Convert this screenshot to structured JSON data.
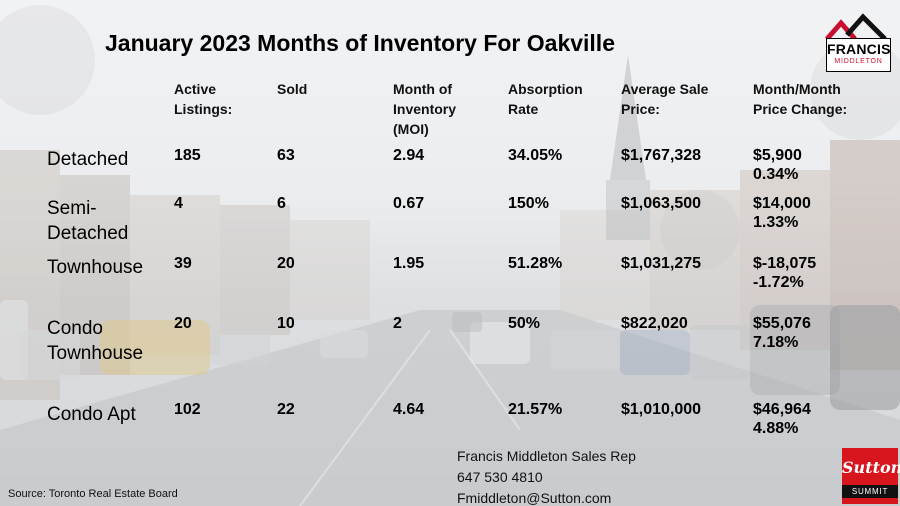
{
  "title": "January 2023 Months of Inventory For Oakville",
  "headers": {
    "active": [
      "Active",
      "Listings:"
    ],
    "sold": [
      "Sold"
    ],
    "moi": [
      "Month of",
      "Inventory",
      "(MOI)"
    ],
    "absorption": [
      "Absorption",
      "Rate"
    ],
    "avg_price": [
      "Average Sale",
      "Price:"
    ],
    "change": [
      "Month/Month",
      "Price Change:"
    ]
  },
  "rows": [
    {
      "label": [
        "Detached"
      ],
      "active": "185",
      "sold": "63",
      "moi": "2.94",
      "absorption": "34.05%",
      "avg_price": "$1,767,328",
      "change": [
        "$5,900",
        "0.34%"
      ]
    },
    {
      "label": [
        "Semi-",
        "Detached"
      ],
      "active": "4",
      "sold": "6",
      "moi": "0.67",
      "absorption": "150%",
      "avg_price": "$1,063,500",
      "change": [
        "$14,000",
        "1.33%"
      ]
    },
    {
      "label": [
        "Townhouse"
      ],
      "active": "39",
      "sold": "20",
      "moi": "1.95",
      "absorption": "51.28%",
      "avg_price": "$1,031,275",
      "change": [
        "$-18,075",
        "-1.72%"
      ]
    },
    {
      "label": [
        "Condo",
        "Townhouse"
      ],
      "active": "20",
      "sold": "10",
      "moi": "2",
      "absorption": "50%",
      "avg_price": "$822,020",
      "change": [
        "$55,076",
        "7.18%"
      ]
    },
    {
      "label": [
        "Condo Apt"
      ],
      "active": "102",
      "sold": "22",
      "moi": "4.64",
      "absorption": "21.57%",
      "avg_price": "$1,010,000",
      "change": [
        "$46,964",
        "4.88%"
      ]
    }
  ],
  "contact": {
    "name": "Francis Middleton Sales Rep",
    "phone": "647 530 4810",
    "email": "Fmiddleton@Sutton.com"
  },
  "source": "Source: Toronto Real Estate Board",
  "logos": {
    "francis": {
      "name": "FRANCIS",
      "sub": "MIDDLETON",
      "roof_colors": [
        "#c8102e",
        "#111111"
      ]
    },
    "sutton": {
      "name": "Sutton",
      "sub": "SUMMIT",
      "color": "#d7151d"
    }
  }
}
